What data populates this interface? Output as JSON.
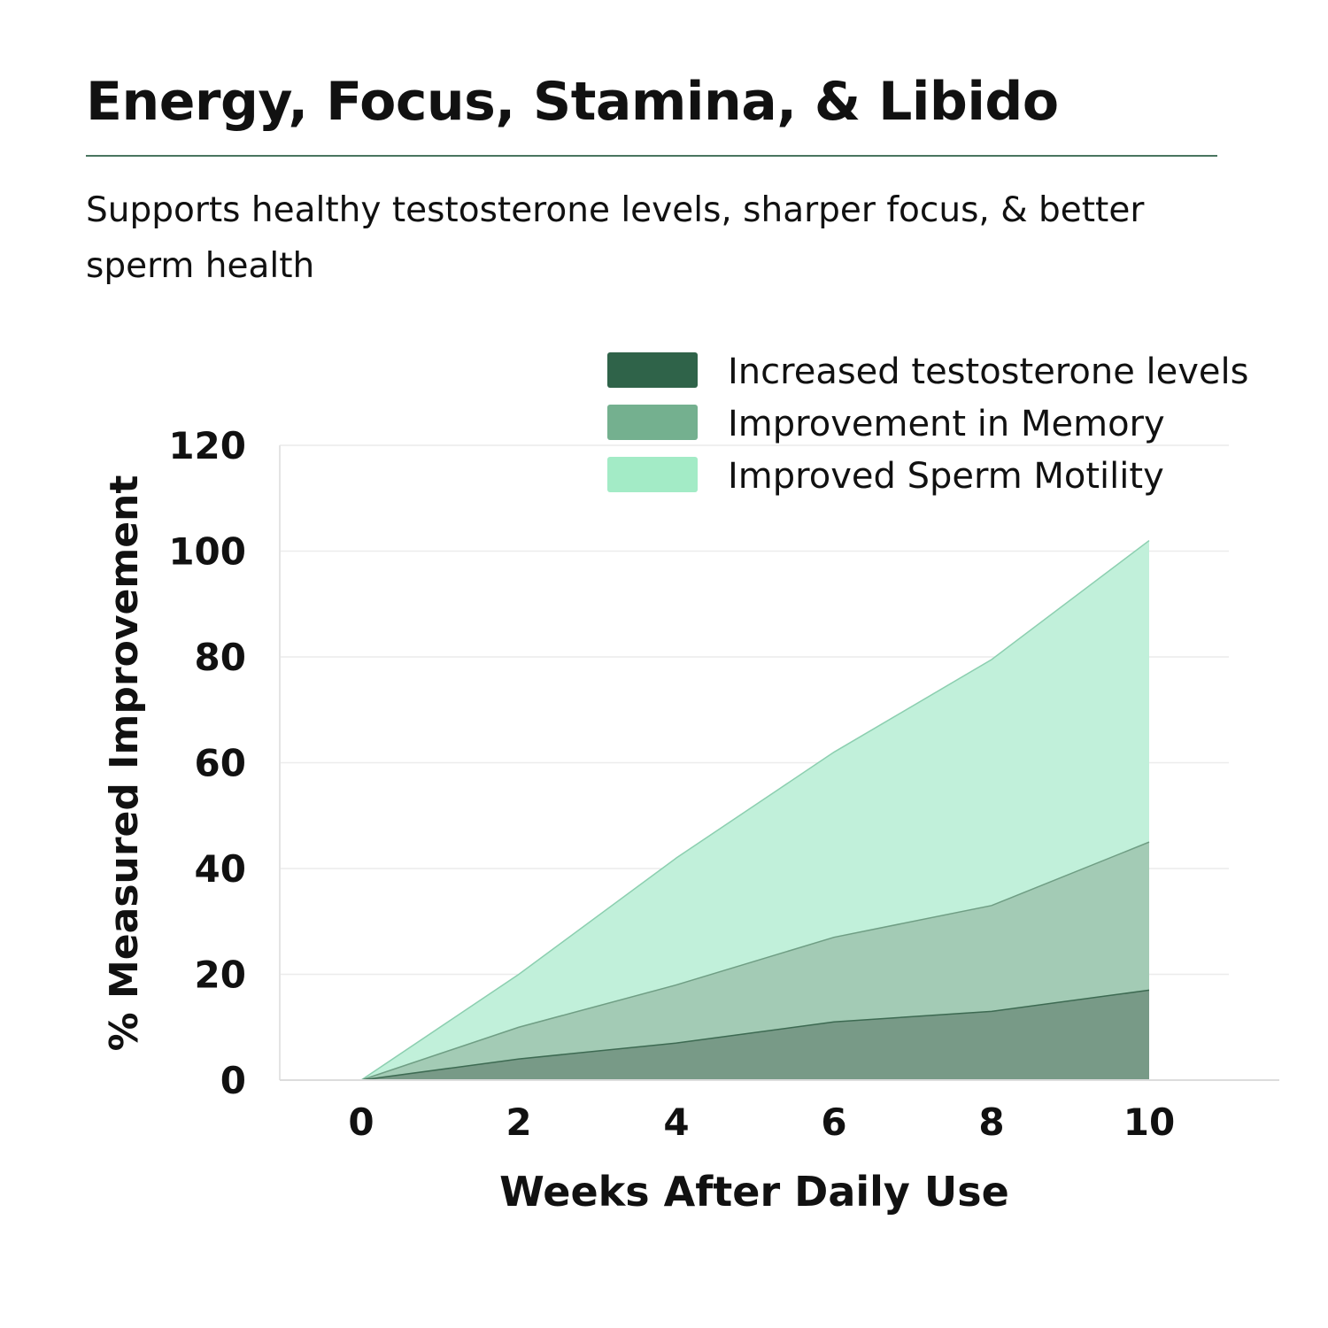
{
  "title": "Energy, Focus, Stamina, & Libido",
  "subtitle": "Supports healthy testosterone levels, sharper focus, & better sperm health",
  "chart_data": {
    "type": "area",
    "stacked": false,
    "xlabel": "Weeks After Daily Use",
    "ylabel": "% Measured Improvement",
    "x": [
      0,
      2,
      4,
      6,
      8,
      10
    ],
    "xticks": [
      "0",
      "2",
      "4",
      "6",
      "8",
      "10"
    ],
    "xlim": [
      -1,
      11.5
    ],
    "ylim": [
      0,
      120
    ],
    "yticks": [
      "0",
      "20",
      "40",
      "60",
      "80",
      "100",
      "120"
    ],
    "grid": true,
    "legend_placement": "top-right",
    "series": [
      {
        "name": "Improved Sperm Motility",
        "values": [
          0,
          20,
          42,
          62,
          79.5,
          102
        ],
        "legend_color": "#a3ebc6",
        "fill": "#c1f0da",
        "line": "#8ccfb0"
      },
      {
        "name": "Improvement in Memory",
        "values": [
          0,
          10,
          18,
          27,
          33,
          45
        ],
        "legend_color": "#74b08f",
        "fill": "#a3cbb5",
        "line": "#6f9e84"
      },
      {
        "name": "Increased testosterone levels",
        "values": [
          0,
          4,
          7,
          11,
          13,
          17
        ],
        "legend_color": "#2f6349",
        "fill": "#789a87",
        "line": "#3d6a52"
      }
    ]
  }
}
